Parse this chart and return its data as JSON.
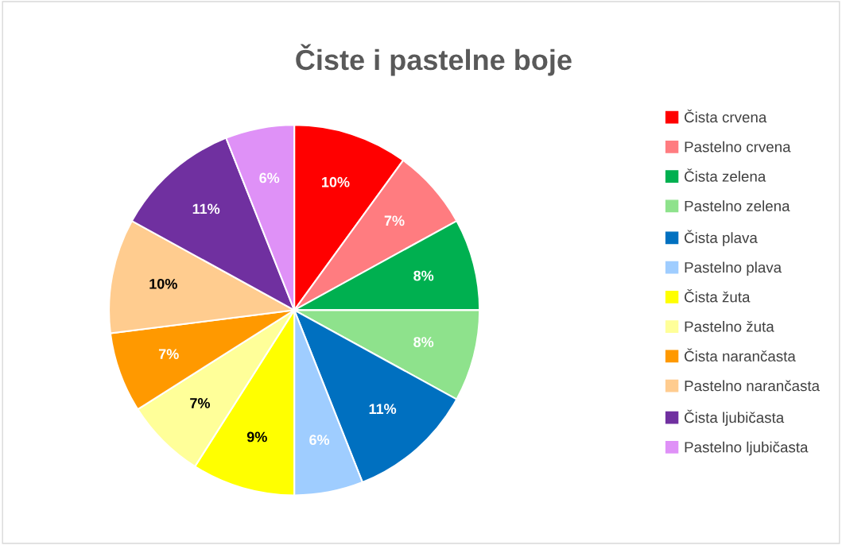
{
  "chart_data": {
    "type": "pie",
    "title": "Čiste i pastelne boje",
    "categories": [
      "Čista crvena",
      "Pastelno crvena",
      "Čista zelena",
      "Pastelno zelena",
      "Čista plava",
      "Pastelno plava",
      "Čista žuta",
      "Pastelno žuta",
      "Čista narančasta",
      "Pastelno narančasta",
      "Čista ljubičasta",
      "Pastelno ljubičasta"
    ],
    "values": [
      10,
      7,
      8,
      8,
      11,
      6,
      9,
      7,
      7,
      10,
      11,
      6
    ],
    "value_labels": [
      "10%",
      "7%",
      "8%",
      "8%",
      "11%",
      "6%",
      "9%",
      "7%",
      "7%",
      "10%",
      "11%",
      "6%"
    ],
    "colors": [
      "#ff0000",
      "#ff7c80",
      "#00b050",
      "#8ee28c",
      "#0070c0",
      "#9fcdff",
      "#ffff00",
      "#ffff99",
      "#ff9900",
      "#ffcc8f",
      "#7030a0",
      "#df91f7"
    ],
    "legend": "right"
  }
}
